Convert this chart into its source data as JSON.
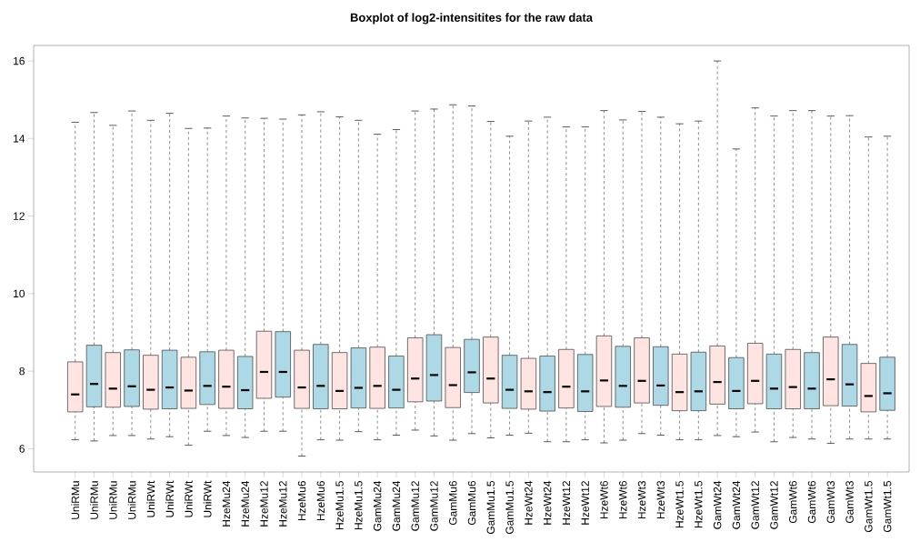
{
  "chart_data": {
    "type": "box",
    "title": "Boxplot of log2-intensitites for the raw data",
    "categories": [
      "UniRMu",
      "UniRMu",
      "UniRMu",
      "UniRMu",
      "UniRWt",
      "UniRWt",
      "UniRWt",
      "UniRWt",
      "HzeMu24",
      "HzeMu24",
      "HzeMu12",
      "HzeMu12",
      "HzeMu6",
      "HzeMu6",
      "HzeMu1.5",
      "HzeMu1.5",
      "GamMu24",
      "GamMu24",
      "GamMu12",
      "GamMu12",
      "GamMu6",
      "GamMu6",
      "GamMu1.5",
      "GamMu1.5",
      "HzeWt24",
      "HzeWt24",
      "HzeWt12",
      "HzeWt12",
      "HzeWt6",
      "HzeWt6",
      "HzeWt3",
      "HzeWt3",
      "HzeWt1.5",
      "HzeWt1.5",
      "GamWt24",
      "GamWt24",
      "GamWt12",
      "GamWt12",
      "GamWt6",
      "GamWt6",
      "GamWt3",
      "GamWt3",
      "GamWt1.5",
      "GamWt1.5"
    ],
    "boxes": [
      {
        "low": 6.23,
        "q1": 6.95,
        "median": 7.4,
        "q3": 8.24,
        "high": 14.42
      },
      {
        "low": 6.2,
        "q1": 7.08,
        "median": 7.67,
        "q3": 8.67,
        "high": 14.67
      },
      {
        "low": 6.34,
        "q1": 7.07,
        "median": 7.55,
        "q3": 8.48,
        "high": 14.34
      },
      {
        "low": 6.34,
        "q1": 7.09,
        "median": 7.61,
        "q3": 8.55,
        "high": 14.71
      },
      {
        "low": 6.25,
        "q1": 7.02,
        "median": 7.52,
        "q3": 8.41,
        "high": 14.47
      },
      {
        "low": 6.31,
        "q1": 7.03,
        "median": 7.58,
        "q3": 8.54,
        "high": 14.65
      },
      {
        "low": 6.09,
        "q1": 7.04,
        "median": 7.5,
        "q3": 8.36,
        "high": 14.26
      },
      {
        "low": 6.45,
        "q1": 7.14,
        "median": 7.62,
        "q3": 8.5,
        "high": 14.27
      },
      {
        "low": 6.34,
        "q1": 7.04,
        "median": 7.6,
        "q3": 8.54,
        "high": 14.58
      },
      {
        "low": 6.29,
        "q1": 7.03,
        "median": 7.51,
        "q3": 8.38,
        "high": 14.53
      },
      {
        "low": 6.45,
        "q1": 7.3,
        "median": 7.98,
        "q3": 9.03,
        "high": 14.52
      },
      {
        "low": 6.45,
        "q1": 7.33,
        "median": 7.98,
        "q3": 9.02,
        "high": 14.5
      },
      {
        "low": 5.81,
        "q1": 7.04,
        "median": 7.58,
        "q3": 8.54,
        "high": 14.61
      },
      {
        "low": 6.23,
        "q1": 7.03,
        "median": 7.62,
        "q3": 8.69,
        "high": 14.69
      },
      {
        "low": 6.22,
        "q1": 7.03,
        "median": 7.49,
        "q3": 8.48,
        "high": 14.56
      },
      {
        "low": 6.44,
        "q1": 7.05,
        "median": 7.57,
        "q3": 8.6,
        "high": 14.47
      },
      {
        "low": 6.23,
        "q1": 7.04,
        "median": 7.62,
        "q3": 8.62,
        "high": 14.11
      },
      {
        "low": 6.35,
        "q1": 7.05,
        "median": 7.52,
        "q3": 8.39,
        "high": 14.23
      },
      {
        "low": 6.48,
        "q1": 7.21,
        "median": 7.81,
        "q3": 8.86,
        "high": 14.71
      },
      {
        "low": 6.33,
        "q1": 7.23,
        "median": 7.9,
        "q3": 8.94,
        "high": 14.76
      },
      {
        "low": 6.22,
        "q1": 7.06,
        "median": 7.64,
        "q3": 8.61,
        "high": 14.87
      },
      {
        "low": 6.39,
        "q1": 7.45,
        "median": 7.97,
        "q3": 8.82,
        "high": 14.84
      },
      {
        "low": 6.28,
        "q1": 7.18,
        "median": 7.81,
        "q3": 8.88,
        "high": 14.44
      },
      {
        "low": 6.35,
        "q1": 7.04,
        "median": 7.52,
        "q3": 8.41,
        "high": 14.06
      },
      {
        "low": 6.4,
        "q1": 7.02,
        "median": 7.48,
        "q3": 8.33,
        "high": 14.45
      },
      {
        "low": 6.18,
        "q1": 6.97,
        "median": 7.46,
        "q3": 8.39,
        "high": 14.55
      },
      {
        "low": 6.18,
        "q1": 7.05,
        "median": 7.6,
        "q3": 8.56,
        "high": 14.3
      },
      {
        "low": 6.23,
        "q1": 6.96,
        "median": 7.48,
        "q3": 8.43,
        "high": 14.3
      },
      {
        "low": 6.15,
        "q1": 7.09,
        "median": 7.76,
        "q3": 8.91,
        "high": 14.72
      },
      {
        "low": 6.22,
        "q1": 7.07,
        "median": 7.62,
        "q3": 8.64,
        "high": 14.48
      },
      {
        "low": 6.39,
        "q1": 7.18,
        "median": 7.75,
        "q3": 8.86,
        "high": 14.7
      },
      {
        "low": 6.35,
        "q1": 7.12,
        "median": 7.63,
        "q3": 8.63,
        "high": 14.55
      },
      {
        "low": 6.23,
        "q1": 6.98,
        "median": 7.46,
        "q3": 8.44,
        "high": 14.38
      },
      {
        "low": 6.23,
        "q1": 6.98,
        "median": 7.48,
        "q3": 8.49,
        "high": 14.45
      },
      {
        "low": 6.34,
        "q1": 7.15,
        "median": 7.72,
        "q3": 8.65,
        "high": 16.0
      },
      {
        "low": 6.31,
        "q1": 7.03,
        "median": 7.49,
        "q3": 8.35,
        "high": 13.73
      },
      {
        "low": 6.43,
        "q1": 7.16,
        "median": 7.75,
        "q3": 8.72,
        "high": 14.79
      },
      {
        "low": 6.18,
        "q1": 7.03,
        "median": 7.55,
        "q3": 8.44,
        "high": 14.58
      },
      {
        "low": 6.29,
        "q1": 7.03,
        "median": 7.59,
        "q3": 8.56,
        "high": 14.72
      },
      {
        "low": 6.25,
        "q1": 7.03,
        "median": 7.55,
        "q3": 8.48,
        "high": 14.72
      },
      {
        "low": 6.14,
        "q1": 7.11,
        "median": 7.79,
        "q3": 8.88,
        "high": 14.58
      },
      {
        "low": 6.25,
        "q1": 7.1,
        "median": 7.66,
        "q3": 8.69,
        "high": 14.59
      },
      {
        "low": 6.25,
        "q1": 6.95,
        "median": 7.36,
        "q3": 8.2,
        "high": 14.04
      },
      {
        "low": 6.25,
        "q1": 6.99,
        "median": 7.43,
        "q3": 8.36,
        "high": 14.06
      }
    ],
    "colors": [
      "#ffe4e1",
      "#add8e6",
      "#ffe4e1",
      "#add8e6",
      "#ffe4e1",
      "#add8e6",
      "#ffe4e1",
      "#add8e6",
      "#ffe4e1",
      "#add8e6",
      "#ffe4e1",
      "#add8e6",
      "#ffe4e1",
      "#add8e6",
      "#ffe4e1",
      "#add8e6",
      "#ffe4e1",
      "#add8e6",
      "#ffe4e1",
      "#add8e6",
      "#ffe4e1",
      "#add8e6",
      "#ffe4e1",
      "#add8e6",
      "#ffe4e1",
      "#add8e6",
      "#ffe4e1",
      "#add8e6",
      "#ffe4e1",
      "#add8e6",
      "#ffe4e1",
      "#add8e6",
      "#ffe4e1",
      "#add8e6",
      "#ffe4e1",
      "#add8e6",
      "#ffe4e1",
      "#add8e6",
      "#ffe4e1",
      "#add8e6",
      "#ffe4e1",
      "#add8e6",
      "#ffe4e1",
      "#add8e6"
    ],
    "ylim": [
      5.4,
      16.4
    ],
    "yticks": [
      6,
      8,
      10,
      12,
      14,
      16
    ]
  }
}
